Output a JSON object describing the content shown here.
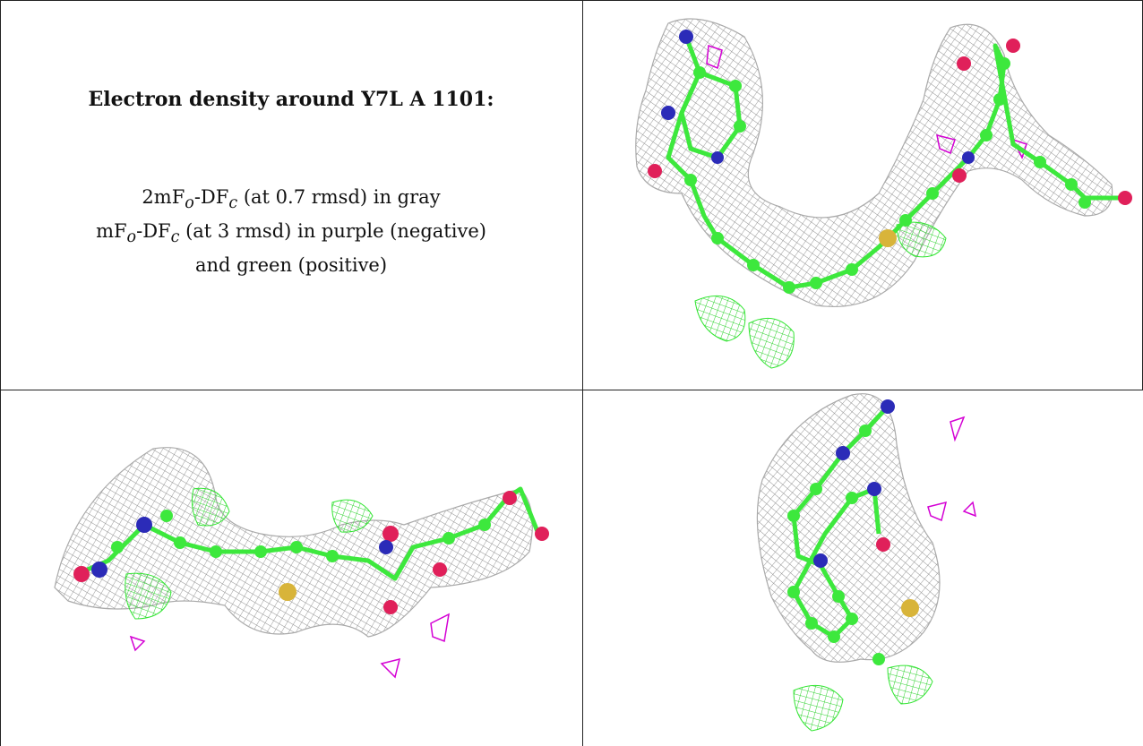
{
  "caption": {
    "title": "Electron density around Y7L A 1101:",
    "line1": "2mFo-DFc (at 0.7 rmsd) in gray",
    "line2": "mFo-DFc (at 3 rmsd) in purple (negative)",
    "line3": "and green (positive)"
  },
  "colors": {
    "mesh_2fofc": "#9a9a9a",
    "mesh_negative": "#d400d4",
    "mesh_positive": "#33e633",
    "carbon": "#3de83d",
    "nitrogen": "#2b2bb8",
    "oxygen": "#e0205a",
    "sulfur": "#d8b43a"
  },
  "panels": [
    {
      "name": "view-top-right"
    },
    {
      "name": "view-bottom-left"
    },
    {
      "name": "view-bottom-right"
    }
  ]
}
